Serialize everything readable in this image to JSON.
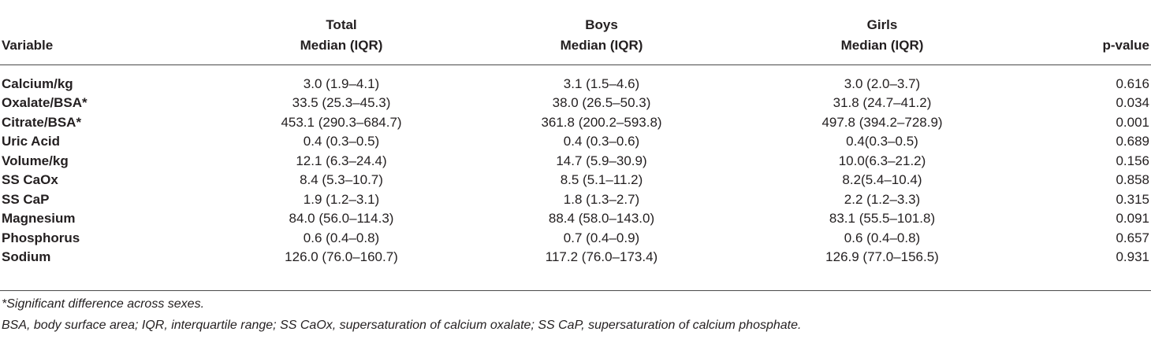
{
  "table": {
    "headers": {
      "variable": "Variable",
      "total": [
        "Total",
        "Median (IQR)"
      ],
      "boys": [
        "Boys",
        "Median (IQR)"
      ],
      "girls": [
        "Girls",
        "Median (IQR)"
      ],
      "pvalue": "p-value"
    },
    "rows": [
      {
        "variable": "Calcium/kg",
        "total": "3.0 (1.9–4.1)",
        "boys": "3.1 (1.5–4.6)",
        "girls": "3.0 (2.0–3.7)",
        "p": "0.616"
      },
      {
        "variable": "Oxalate/BSA*",
        "total": "33.5 (25.3–45.3)",
        "boys": "38.0 (26.5–50.3)",
        "girls": "31.8 (24.7–41.2)",
        "p": "0.034"
      },
      {
        "variable": "Citrate/BSA*",
        "total": "453.1 (290.3–684.7)",
        "boys": "361.8 (200.2–593.8)",
        "girls": "497.8 (394.2–728.9)",
        "p": "0.001"
      },
      {
        "variable": "Uric Acid",
        "total": "0.4 (0.3–0.5)",
        "boys": "0.4 (0.3–0.6)",
        "girls": "0.4(0.3–0.5)",
        "p": "0.689"
      },
      {
        "variable": "Volume/kg",
        "total": "12.1 (6.3–24.4)",
        "boys": "14.7 (5.9–30.9)",
        "girls": "10.0(6.3–21.2)",
        "p": "0.156"
      },
      {
        "variable": "SS CaOx",
        "total": "8.4 (5.3–10.7)",
        "boys": "8.5 (5.1–11.2)",
        "girls": "8.2(5.4–10.4)",
        "p": "0.858"
      },
      {
        "variable": "SS CaP",
        "total": "1.9 (1.2–3.1)",
        "boys": "1.8 (1.3–2.7)",
        "girls": "2.2 (1.2–3.3)",
        "p": "0.315"
      },
      {
        "variable": "Magnesium",
        "total": "84.0 (56.0–114.3)",
        "boys": "88.4 (58.0–143.0)",
        "girls": "83.1 (55.5–101.8)",
        "p": "0.091"
      },
      {
        "variable": "Phosphorus",
        "total": "0.6 (0.4–0.8)",
        "boys": "0.7 (0.4–0.9)",
        "girls": "0.6 (0.4–0.8)",
        "p": "0.657"
      },
      {
        "variable": "Sodium",
        "total": "126.0 (76.0–160.7)",
        "boys": "117.2 (76.0–173.4)",
        "girls": "126.9 (77.0–156.5)",
        "p": "0.931"
      }
    ]
  },
  "footnotes": [
    "*Significant difference across sexes.",
    "BSA, body surface area; IQR, interquartile range; SS CaOx, supersaturation of calcium oxalate; SS CaP, supersaturation of calcium phosphate."
  ],
  "colors": {
    "text": "#231f20",
    "rule": "#4a4a4a",
    "background": "#ffffff"
  }
}
